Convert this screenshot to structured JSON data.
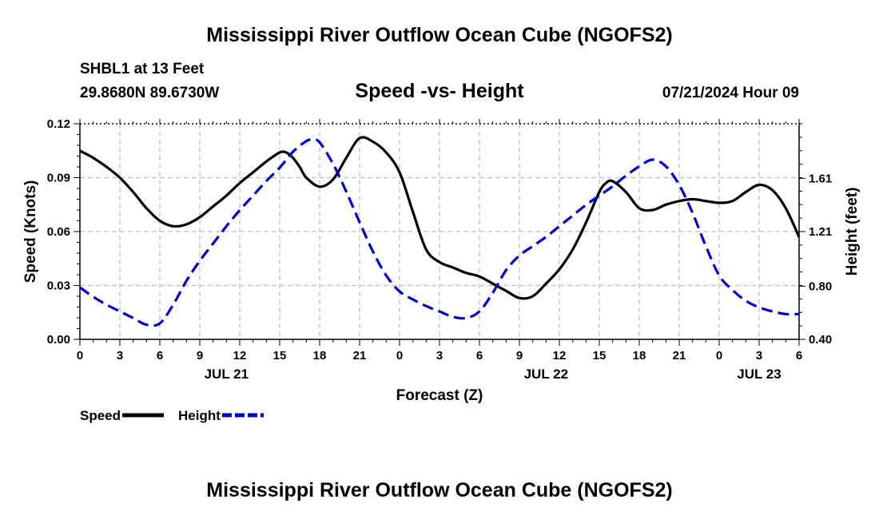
{
  "header": {
    "title": "Mississippi River Outflow Ocean Cube (NGOFS2)",
    "station": "SHBL1 at 13 Feet",
    "coordinates": "29.8680N  89.6730W",
    "subtitle": "Speed -vs- Height",
    "datetime": "07/21/2024 Hour 09"
  },
  "footer": {
    "title": "Mississippi River Outflow Ocean Cube (NGOFS2)"
  },
  "chart_data": {
    "type": "line",
    "title": "Speed -vs- Height",
    "xlabel": "Forecast (Z)",
    "ylabel": "Speed (Knots)",
    "y2label": "Height (feet)",
    "x_hours_range": [
      0,
      54
    ],
    "x_tick_hours": [
      0,
      3,
      6,
      9,
      12,
      15,
      18,
      21,
      24,
      27,
      30,
      33,
      36,
      39,
      42,
      45,
      48,
      51,
      54
    ],
    "x_tick_labels": [
      "0",
      "3",
      "6",
      "9",
      "12",
      "15",
      "18",
      "21",
      "0",
      "3",
      "6",
      "9",
      "12",
      "15",
      "18",
      "21",
      "0",
      "3",
      "6"
    ],
    "date_labels": [
      {
        "hour": 11,
        "label": "JUL 21"
      },
      {
        "hour": 35,
        "label": "JUL 22"
      },
      {
        "hour": 51,
        "label": "JUL 23"
      }
    ],
    "ylim": [
      0,
      0.12
    ],
    "y_ticks": [
      0.0,
      0.03,
      0.06,
      0.09,
      0.12
    ],
    "y_tick_labels": [
      "0.00",
      "0.03",
      "0.06",
      "0.09",
      "0.12"
    ],
    "y2lim": [
      0.4,
      2.02
    ],
    "y2_ticks": [
      0.4,
      0.8,
      1.21,
      1.61
    ],
    "y2_tick_labels": [
      "0.40",
      "0.80",
      "1.21",
      "1.61"
    ],
    "grid": true,
    "legend_position": "bottom-left",
    "series": [
      {
        "name": "Speed",
        "axis": "left",
        "color": "#000000",
        "dash": "solid",
        "x": [
          0,
          1,
          2,
          3,
          4,
          5,
          6,
          7,
          8,
          9,
          10,
          11,
          12,
          13,
          14,
          15,
          15.5,
          16,
          16.5,
          17,
          18,
          19,
          20,
          21,
          22,
          23,
          24,
          25,
          26,
          27,
          28,
          29,
          30,
          31,
          32,
          33,
          34,
          35,
          36,
          37,
          38,
          39,
          39.5,
          40,
          41,
          42,
          43,
          44,
          45,
          46,
          47,
          48,
          49,
          50,
          51,
          52,
          53,
          54
        ],
        "y": [
          0.105,
          0.101,
          0.096,
          0.09,
          0.082,
          0.073,
          0.066,
          0.063,
          0.064,
          0.068,
          0.074,
          0.08,
          0.087,
          0.093,
          0.099,
          0.104,
          0.104,
          0.101,
          0.096,
          0.09,
          0.085,
          0.089,
          0.101,
          0.112,
          0.11,
          0.104,
          0.093,
          0.071,
          0.05,
          0.043,
          0.04,
          0.037,
          0.035,
          0.031,
          0.027,
          0.023,
          0.024,
          0.031,
          0.039,
          0.05,
          0.065,
          0.082,
          0.087,
          0.088,
          0.082,
          0.073,
          0.072,
          0.075,
          0.077,
          0.078,
          0.077,
          0.076,
          0.077,
          0.082,
          0.086,
          0.083,
          0.073,
          0.057
        ]
      },
      {
        "name": "Height",
        "axis": "right",
        "color": "#0000cc",
        "dash": "dashed",
        "x": [
          0,
          1,
          2,
          3,
          4,
          5,
          6,
          7,
          8,
          9,
          10,
          11,
          12,
          13,
          14,
          15,
          16,
          17,
          17.5,
          18,
          19,
          20,
          21,
          22,
          23,
          24,
          25,
          26,
          27,
          28,
          29,
          30,
          31,
          32,
          33,
          34,
          35,
          36,
          37,
          38,
          39,
          40,
          41,
          42,
          43,
          44,
          45,
          46,
          47,
          48,
          49,
          50,
          51,
          52,
          53,
          54
        ],
        "y": [
          0.79,
          0.72,
          0.66,
          0.61,
          0.56,
          0.51,
          0.52,
          0.66,
          0.84,
          0.99,
          1.12,
          1.25,
          1.37,
          1.48,
          1.59,
          1.69,
          1.81,
          1.89,
          1.9,
          1.88,
          1.72,
          1.51,
          1.28,
          1.06,
          0.88,
          0.76,
          0.7,
          0.65,
          0.61,
          0.57,
          0.56,
          0.61,
          0.75,
          0.92,
          1.03,
          1.1,
          1.17,
          1.25,
          1.33,
          1.41,
          1.48,
          1.55,
          1.63,
          1.7,
          1.75,
          1.7,
          1.56,
          1.35,
          1.1,
          0.88,
          0.77,
          0.69,
          0.64,
          0.61,
          0.59,
          0.59
        ]
      }
    ]
  }
}
